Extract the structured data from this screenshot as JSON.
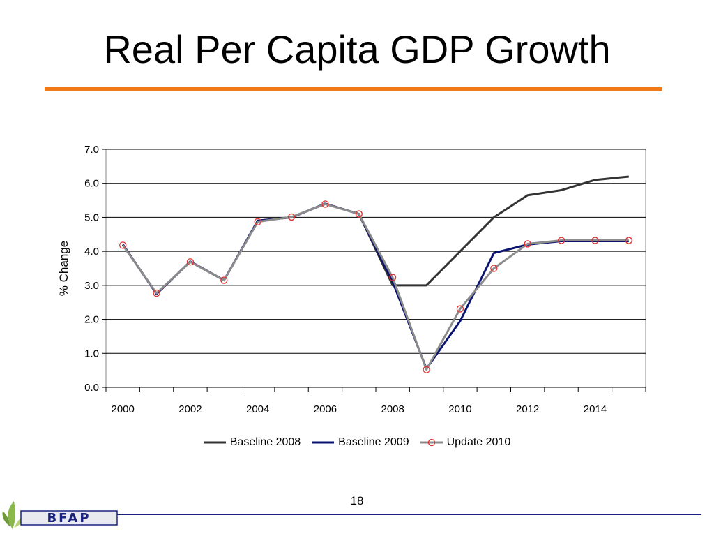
{
  "slide": {
    "title": "Real Per Capita GDP Growth",
    "page_number": "18",
    "logo_text": "BFAP",
    "accent_color": "#ef7a1a",
    "footer_color": "#1a237e"
  },
  "chart_data": {
    "type": "line",
    "title": "",
    "xlabel": "",
    "ylabel": "% Change",
    "ylim": [
      0,
      7
    ],
    "yticks": [
      "0.0",
      "1.0",
      "2.0",
      "3.0",
      "4.0",
      "5.0",
      "6.0",
      "7.0"
    ],
    "xlim": [
      2000,
      2015
    ],
    "xticks": [
      "2000",
      "2002",
      "2004",
      "2006",
      "2008",
      "2010",
      "2012",
      "2014"
    ],
    "grid": "horizontal",
    "legend_position": "bottom",
    "series": [
      {
        "name": "Baseline 2008",
        "color": "#333333",
        "marker": "none",
        "x": [
          2000,
          2001,
          2002,
          2003,
          2004,
          2005,
          2006,
          2007,
          2008,
          2009,
          2010,
          2011,
          2012,
          2013,
          2014,
          2015
        ],
        "values": [
          4.2,
          2.75,
          3.7,
          3.15,
          4.9,
          5.0,
          5.4,
          5.1,
          3.0,
          3.0,
          4.0,
          5.0,
          5.65,
          5.8,
          6.1,
          6.2
        ]
      },
      {
        "name": "Baseline 2009",
        "color": "#0a1270",
        "marker": "none",
        "x": [
          2000,
          2001,
          2002,
          2003,
          2004,
          2005,
          2006,
          2007,
          2008,
          2009,
          2010,
          2011,
          2012,
          2013,
          2014,
          2015
        ],
        "values": [
          4.2,
          2.75,
          3.7,
          3.15,
          4.9,
          5.0,
          5.4,
          5.1,
          3.1,
          0.55,
          1.95,
          3.95,
          4.2,
          4.3,
          4.3,
          4.3
        ]
      },
      {
        "name": "Update 2010",
        "color": "#8c8c8c",
        "marker": "circle",
        "marker_color": "#e03030",
        "x": [
          2000,
          2001,
          2002,
          2003,
          2004,
          2005,
          2006,
          2007,
          2008,
          2009,
          2010,
          2011,
          2012,
          2013,
          2014,
          2015
        ],
        "values": [
          4.18,
          2.77,
          3.69,
          3.15,
          4.87,
          5.01,
          5.39,
          5.1,
          3.23,
          0.52,
          2.31,
          3.5,
          4.22,
          4.32,
          4.32,
          4.32
        ]
      }
    ]
  }
}
